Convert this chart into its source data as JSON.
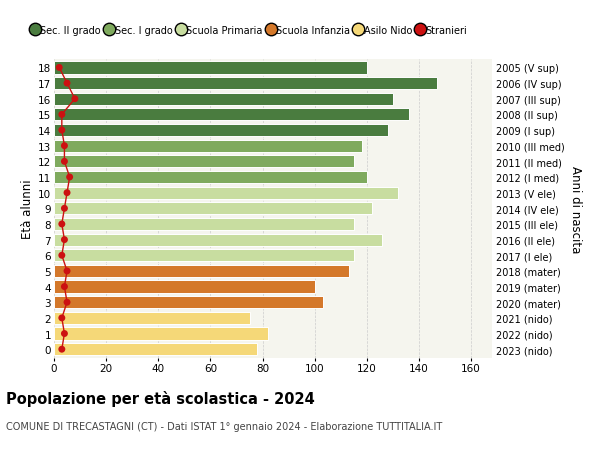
{
  "ages": [
    18,
    17,
    16,
    15,
    14,
    13,
    12,
    11,
    10,
    9,
    8,
    7,
    6,
    5,
    4,
    3,
    2,
    1,
    0
  ],
  "values": [
    120,
    147,
    130,
    136,
    128,
    118,
    115,
    120,
    132,
    122,
    115,
    126,
    115,
    113,
    100,
    103,
    75,
    82,
    78
  ],
  "stranieri": [
    2,
    5,
    8,
    3,
    3,
    4,
    4,
    6,
    5,
    4,
    3,
    4,
    3,
    5,
    4,
    5,
    3,
    4,
    3
  ],
  "right_labels": [
    "2005 (V sup)",
    "2006 (IV sup)",
    "2007 (III sup)",
    "2008 (II sup)",
    "2009 (I sup)",
    "2010 (III med)",
    "2011 (II med)",
    "2012 (I med)",
    "2013 (V ele)",
    "2014 (IV ele)",
    "2015 (III ele)",
    "2016 (II ele)",
    "2017 (I ele)",
    "2018 (mater)",
    "2019 (mater)",
    "2020 (mater)",
    "2021 (nido)",
    "2022 (nido)",
    "2023 (nido)"
  ],
  "bar_colors": [
    "#4a7c3f",
    "#4a7c3f",
    "#4a7c3f",
    "#4a7c3f",
    "#4a7c3f",
    "#7faa5e",
    "#7faa5e",
    "#7faa5e",
    "#c8dda0",
    "#c8dda0",
    "#c8dda0",
    "#c8dda0",
    "#c8dda0",
    "#d4782a",
    "#d4782a",
    "#d4782a",
    "#f5d878",
    "#f5d878",
    "#f5d878"
  ],
  "legend_labels": [
    "Sec. II grado",
    "Sec. I grado",
    "Scuola Primaria",
    "Scuola Infanzia",
    "Asilo Nido",
    "Stranieri"
  ],
  "legend_colors": [
    "#4a7c3f",
    "#7faa5e",
    "#c8dda0",
    "#d4782a",
    "#f5d878",
    "#cc1111"
  ],
  "title": "Popolazione per età scolastica - 2024",
  "subtitle": "COMUNE DI TRECASTAGNI (CT) - Dati ISTAT 1° gennaio 2024 - Elaborazione TUTTITALIA.IT",
  "ylabel_left": "Età alunni",
  "ylabel_right": "Anni di nascita",
  "xlim": [
    0,
    168
  ],
  "xticks": [
    0,
    20,
    40,
    60,
    80,
    100,
    120,
    140,
    160
  ],
  "background_color": "#ffffff",
  "plot_bg_color": "#f5f5ee",
  "stranieri_color": "#cc1111",
  "stranieri_dot_size": 25,
  "grid_color": "#cccccc"
}
